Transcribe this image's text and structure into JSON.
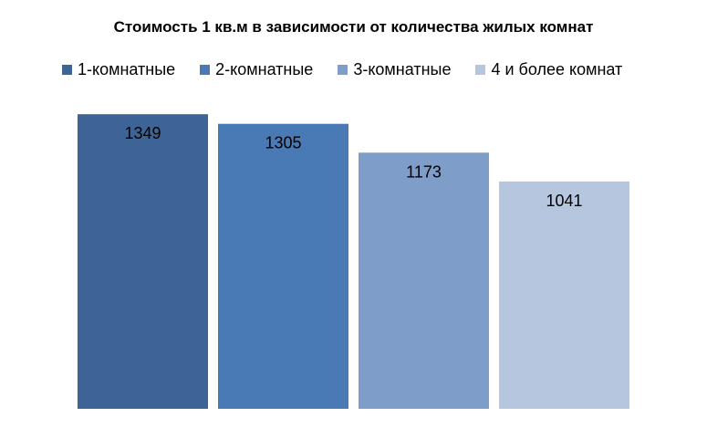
{
  "chart_data": {
    "type": "bar",
    "title": "Стоимость 1 кв.м в зависимости от количества жилых комнат",
    "xlabel": "",
    "ylabel": "",
    "ylim": [
      0,
      1450
    ],
    "grid": false,
    "legend_position": "top",
    "categories": [
      ""
    ],
    "series": [
      {
        "name": "1-комнатные",
        "values": [
          1349
        ],
        "color": "#3E6497"
      },
      {
        "name": "2-комнатные",
        "values": [
          1305
        ],
        "color": "#4A7AB5"
      },
      {
        "name": "3-комнатные",
        "values": [
          1173
        ],
        "color": "#7F9DC9"
      },
      {
        "name": "4 и более комнат",
        "values": [
          1041
        ],
        "color": "#B7C6DF"
      }
    ]
  }
}
